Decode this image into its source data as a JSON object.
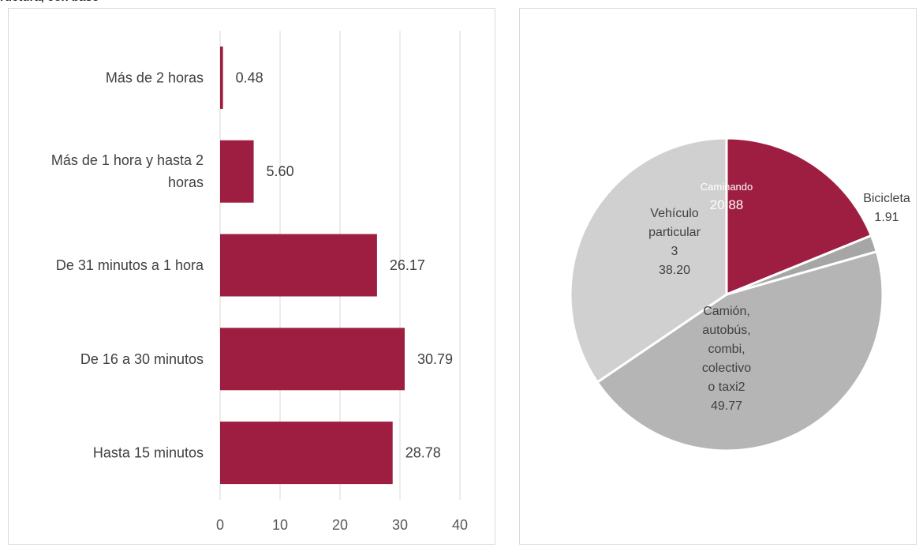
{
  "header_fragment": "ructura, con base",
  "colors": {
    "bar": "#9e1e42",
    "grid": "#d9d9d9",
    "pie_slices": [
      "#9e1e42",
      "#a6a6a6",
      "#b5b5b5",
      "#d0d0d0"
    ],
    "slice_border": "#ffffff"
  },
  "chart_data": [
    {
      "type": "bar",
      "orientation": "horizontal",
      "categories": [
        "Más de 2 horas",
        "Más de 1 hora y hasta 2 horas",
        "De 31 minutos a 1 hora",
        "De 16 a 30 minutos",
        "Hasta 15 minutos"
      ],
      "values": [
        0.48,
        5.6,
        26.17,
        30.79,
        28.78
      ],
      "value_labels": [
        "0.48",
        "5.60",
        "26.17",
        "30.79",
        "28.78"
      ],
      "xlim": [
        0,
        40
      ],
      "xticks": [
        "0",
        "10",
        "20",
        "30",
        "40"
      ],
      "grid": true
    },
    {
      "type": "pie",
      "slices": [
        {
          "label": "Caminando",
          "value": 20.88,
          "value_label": "20.88"
        },
        {
          "label": "Bicicleta",
          "value": 1.91,
          "value_label": "1.91"
        },
        {
          "label": "Camión, autobús, combi, colectivo o taxi2",
          "value": 49.77,
          "value_label": "49.77"
        },
        {
          "label": "Vehículo particular 3",
          "value": 38.2,
          "value_label": "38.20"
        }
      ]
    }
  ]
}
